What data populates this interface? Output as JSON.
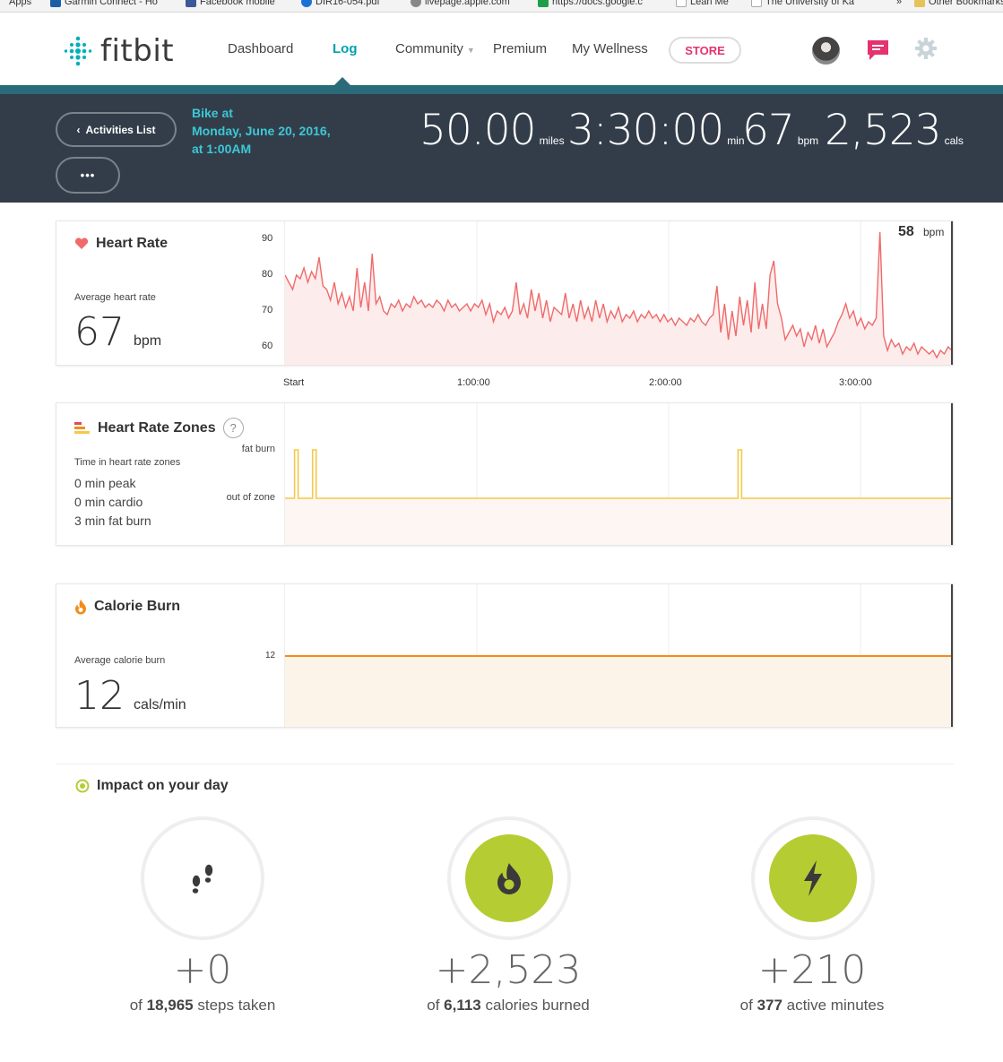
{
  "bookmarks": [
    "Apps",
    "Garmin Connect - Ho",
    "Facebook mobile",
    "DIR16-054.pdf",
    "livepage.apple.com",
    "https://docs.google.c",
    "Lean Me",
    "The University of Ka",
    "»",
    "Other Bookmarks"
  ],
  "nav": {
    "logo": "fitbit",
    "links": [
      "Dashboard",
      "Log",
      "Community",
      "Premium",
      "My Wellness"
    ],
    "store": "STORE"
  },
  "activity": {
    "back_label": "Activities List",
    "more_label": "•••",
    "title_line1": "Bike at",
    "title_line2": "Monday, June 20, 2016,",
    "title_line3": "at 1:00AM",
    "stats": [
      {
        "value": "50.00",
        "unit": "miles"
      },
      {
        "value": "3:30:00",
        "unit": "min"
      },
      {
        "value": "67",
        "unit": "bpm"
      },
      {
        "value": "2,523",
        "unit": "cals"
      }
    ]
  },
  "heart_rate": {
    "title": "Heart Rate",
    "avg_label": "Average heart rate",
    "avg_value": "67",
    "avg_unit": "bpm",
    "current_value": "58",
    "current_unit": "bpm"
  },
  "zones": {
    "title": "Heart Rate Zones",
    "help": "?",
    "subtitle": "Time in heart rate zones",
    "lines": [
      "0 min peak",
      "0 min cardio",
      "3 min fat burn"
    ],
    "label_top": "fat burn",
    "label_bottom": "out of zone"
  },
  "calories": {
    "title": "Calorie Burn",
    "avg_label": "Average calorie burn",
    "avg_value": "12",
    "avg_unit": "cals/min"
  },
  "x_axis": [
    "Start",
    "1:00:00",
    "2:00:00",
    "3:00:00"
  ],
  "impact": {
    "title": "Impact on your day",
    "items": [
      {
        "value": "+0",
        "of": "of",
        "total": "18,965",
        "label": "steps taken",
        "icon": "footsteps-icon"
      },
      {
        "value": "+2,523",
        "of": "of",
        "total": "6,113",
        "label": "calories burned",
        "icon": "flame-icon"
      },
      {
        "value": "+210",
        "of": "of",
        "total": "377",
        "label": "active minutes",
        "icon": "bolt-icon"
      }
    ]
  },
  "chart_data": [
    {
      "type": "line",
      "series": [
        {
          "values": [
            80,
            78,
            76,
            80,
            79,
            82,
            78,
            81,
            79,
            85,
            77,
            76,
            73,
            78,
            72,
            75,
            71,
            74,
            70,
            82,
            71,
            78,
            70,
            86,
            72,
            74,
            70,
            69,
            72,
            71,
            73,
            70,
            72,
            71,
            74,
            72,
            73,
            71,
            72,
            71,
            73,
            72,
            70,
            73,
            71,
            72,
            70,
            71,
            72,
            70,
            72,
            71,
            73,
            69,
            72,
            67,
            70,
            69,
            71,
            68,
            70,
            78,
            69,
            72,
            68,
            76,
            70,
            75,
            68,
            73,
            67,
            71,
            70,
            69,
            75,
            68,
            72,
            67,
            73,
            68,
            71,
            67,
            73,
            68,
            72,
            67,
            70,
            68,
            71,
            67,
            69,
            68,
            70,
            67,
            69,
            68,
            70,
            68,
            69,
            67,
            69,
            67,
            68,
            66,
            68,
            67,
            66,
            68,
            67,
            69,
            67,
            66,
            68,
            69,
            77,
            64,
            72,
            62,
            70,
            63,
            74,
            66,
            73,
            64,
            78,
            65,
            72,
            65,
            80,
            84,
            72,
            68,
            62,
            64,
            66,
            63,
            65,
            60,
            64,
            62,
            66,
            61,
            65,
            60,
            62,
            64,
            67,
            69,
            72,
            68,
            70,
            66,
            68,
            65,
            67,
            66,
            68,
            92,
            63,
            59,
            62,
            60,
            61,
            58,
            60,
            59,
            61,
            58,
            60,
            59,
            58,
            59,
            57,
            59,
            58,
            60,
            59
          ]
        }
      ],
      "x": {
        "ticks": [
          "Start",
          "1:00:00",
          "2:00:00",
          "3:00:00"
        ]
      },
      "y_ticks": [
        90,
        80,
        70,
        60
      ],
      "ylim": [
        55,
        95
      ]
    },
    {
      "type": "line",
      "y_categories": [
        "out of zone",
        "fat burn"
      ],
      "spikes_at_fraction": [
        0.017,
        0.044,
        0.682
      ]
    },
    {
      "type": "line",
      "series": [
        {
          "values": [
            12,
            12
          ]
        }
      ],
      "y_ticks": [
        12
      ],
      "ylim": [
        0,
        16
      ]
    }
  ],
  "colors": {
    "teal": "#00a0b0",
    "heart": "#f06a6a",
    "zone": "#f2c94c",
    "calorie": "#f28c1a",
    "lime": "#b5cc33",
    "store": "#e5336e"
  }
}
